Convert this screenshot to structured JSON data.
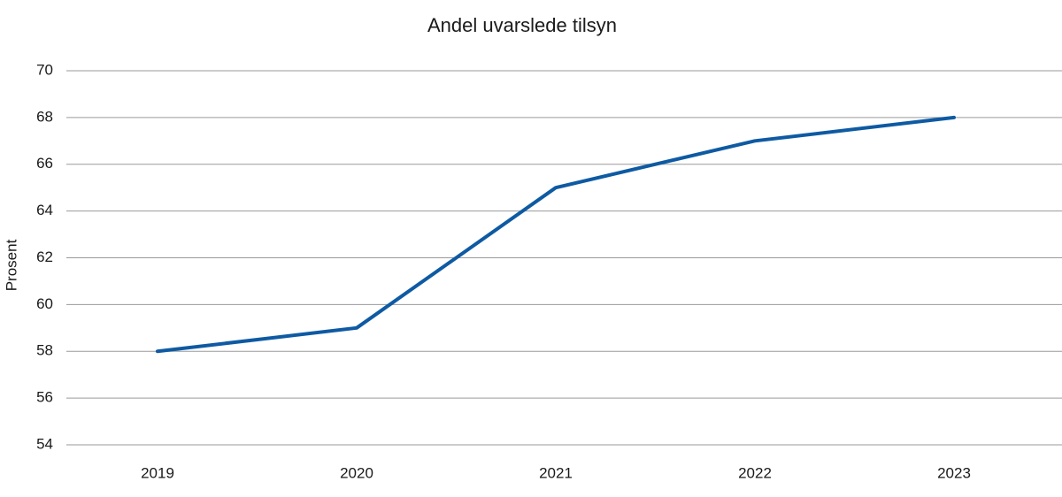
{
  "chart_data": {
    "type": "line",
    "title": "Andel uvarslede tilsyn",
    "y_label": "Prosent",
    "categories": [
      "2019",
      "2020",
      "2021",
      "2022",
      "2023"
    ],
    "series": [
      {
        "name": "Andel uvarslede tilsyn",
        "color": "#0e5aa3",
        "values": [
          58,
          59,
          65,
          67,
          68
        ]
      }
    ],
    "ylim": [
      54,
      70
    ],
    "yticks": [
      54,
      56,
      58,
      60,
      62,
      64,
      66,
      68,
      70
    ],
    "grid": true
  }
}
